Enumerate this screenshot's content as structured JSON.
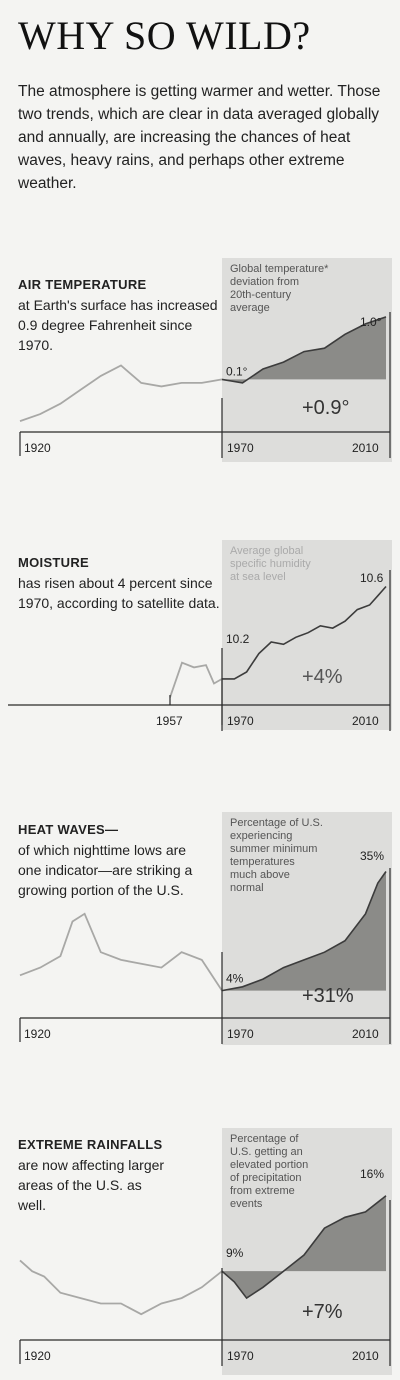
{
  "title": "WHY SO WILD?",
  "intro": "The atmosphere is getting warmer and wetter. Those two trends, which are clear in data averaged globally and annually, are increasing the chances of heat waves, heavy rains, and perhaps other extreme weather.",
  "panels": [
    {
      "heading": "AIR TEMPERATURE",
      "text": "at Earth's surface has increased 0.9 degree Fahrenheit since 1970.",
      "caption": [
        "Global temperature*",
        "deviation from",
        "20th-century",
        "average"
      ],
      "start_label": "1920",
      "mid_label": "1970",
      "end_label": "2010",
      "start_value": "0.1°",
      "end_value": "1.0°",
      "change": "+0.9°"
    },
    {
      "heading": "MOISTURE",
      "text": "has risen about 4 percent since 1970, according to satellite data.",
      "caption": [
        "Average global",
        "specific humidity",
        "at sea level"
      ],
      "start_label": "1957",
      "mid_label": "1970",
      "end_label": "2010",
      "start_value": "10.2",
      "end_value": "10.6",
      "change": "+4%"
    },
    {
      "heading": "HEAT WAVES—",
      "text": "of which nighttime lows are one indicator—are striking a growing portion of the U.S.",
      "caption": [
        "Percentage of U.S.",
        "experiencing",
        "summer minimum",
        "temperatures",
        "much above",
        "normal"
      ],
      "start_label": "1920",
      "mid_label": "1970",
      "end_label": "2010",
      "start_value": "4%",
      "end_value": "35%",
      "change": "+31%"
    },
    {
      "heading": "EXTREME RAINFALLS",
      "text": "are now affecting larger areas of the U.S. as well.",
      "caption": [
        "Percentage of",
        "U.S. getting an",
        "elevated portion",
        "of precipitation",
        "from extreme",
        "events"
      ],
      "start_label": "1920",
      "mid_label": "1970",
      "end_label": "2010",
      "start_value": "9%",
      "end_value": "16%",
      "change": "+7%"
    }
  ],
  "chart_data": [
    {
      "type": "area",
      "title": "Global temperature* deviation from 20th-century average",
      "x": [
        1920,
        1925,
        1930,
        1935,
        1940,
        1945,
        1950,
        1955,
        1960,
        1965,
        1970,
        1975,
        1980,
        1985,
        1990,
        1995,
        2000,
        2005,
        2010
      ],
      "values": [
        -0.5,
        -0.4,
        -0.25,
        -0.05,
        0.15,
        0.3,
        0.05,
        0.0,
        0.05,
        0.05,
        0.1,
        0.05,
        0.25,
        0.35,
        0.5,
        0.55,
        0.75,
        0.9,
        1.0
      ],
      "xlim": [
        1920,
        2010
      ],
      "ylim": [
        -0.6,
        1.1
      ],
      "shaded_from": 1970
    },
    {
      "type": "line",
      "title": "Average global specific humidity at sea level",
      "x": [
        1957,
        1960,
        1963,
        1966,
        1968,
        1970,
        1973,
        1976,
        1979,
        1982,
        1985,
        1988,
        1991,
        1994,
        1997,
        2000,
        2003,
        2006,
        2008,
        2010
      ],
      "values": [
        10.12,
        10.27,
        10.25,
        10.26,
        10.18,
        10.2,
        10.2,
        10.23,
        10.31,
        10.36,
        10.35,
        10.38,
        10.4,
        10.43,
        10.42,
        10.45,
        10.5,
        10.52,
        10.56,
        10.6
      ],
      "xlim": [
        1957,
        2010
      ],
      "ylim": [
        10.1,
        10.65
      ],
      "shaded_from": 1970
    },
    {
      "type": "area",
      "title": "Percentage of U.S. experiencing summer minimum temperatures much above normal",
      "x": [
        1920,
        1925,
        1930,
        1933,
        1936,
        1940,
        1945,
        1950,
        1955,
        1960,
        1965,
        1970,
        1975,
        1980,
        1985,
        1990,
        1995,
        2000,
        2005,
        2008,
        2010
      ],
      "values": [
        8,
        10,
        13,
        22,
        24,
        14,
        12,
        11,
        10,
        14,
        12,
        4,
        5,
        7,
        10,
        12,
        14,
        17,
        24,
        32,
        35
      ],
      "xlim": [
        1920,
        2010
      ],
      "ylim": [
        0,
        38
      ],
      "shaded_from": 1970
    },
    {
      "type": "area",
      "title": "Percentage of U.S. getting an elevated portion of precipitation from extreme events",
      "x": [
        1920,
        1923,
        1926,
        1930,
        1935,
        1940,
        1945,
        1950,
        1955,
        1960,
        1965,
        1970,
        1973,
        1976,
        1980,
        1985,
        1990,
        1995,
        2000,
        2005,
        2010
      ],
      "values": [
        10,
        9,
        8.5,
        7,
        6.5,
        6,
        6,
        5,
        6,
        6.5,
        7.5,
        9,
        8,
        6.5,
        7.5,
        9,
        10.5,
        13,
        14,
        14.5,
        16
      ],
      "xlim": [
        1920,
        2010
      ],
      "ylim": [
        4,
        17
      ],
      "shaded_from": 1970
    }
  ]
}
